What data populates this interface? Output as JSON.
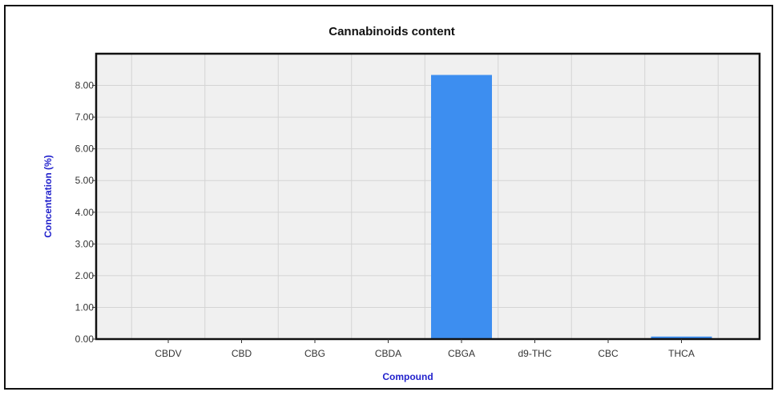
{
  "chart_data": {
    "type": "bar",
    "title": "Cannabinoids content",
    "xlabel": "Compound",
    "ylabel": "Concentration (%)",
    "categories": [
      "CBDV",
      "CBD",
      "CBG",
      "CBDA",
      "CBGA",
      "d9-THC",
      "CBC",
      "THCA"
    ],
    "values": [
      0.02,
      0.02,
      0.02,
      0.02,
      8.33,
      0.02,
      0.02,
      0.08
    ],
    "ylim": [
      0,
      9
    ],
    "yticks": [
      "0.00",
      "1.00",
      "2.00",
      "3.00",
      "4.00",
      "5.00",
      "6.00",
      "7.00",
      "8.00"
    ],
    "grid": true,
    "bar_color": "#3d8ef0",
    "plot_background": "#f0f0f0",
    "axis_title_color": "#2222cc"
  }
}
